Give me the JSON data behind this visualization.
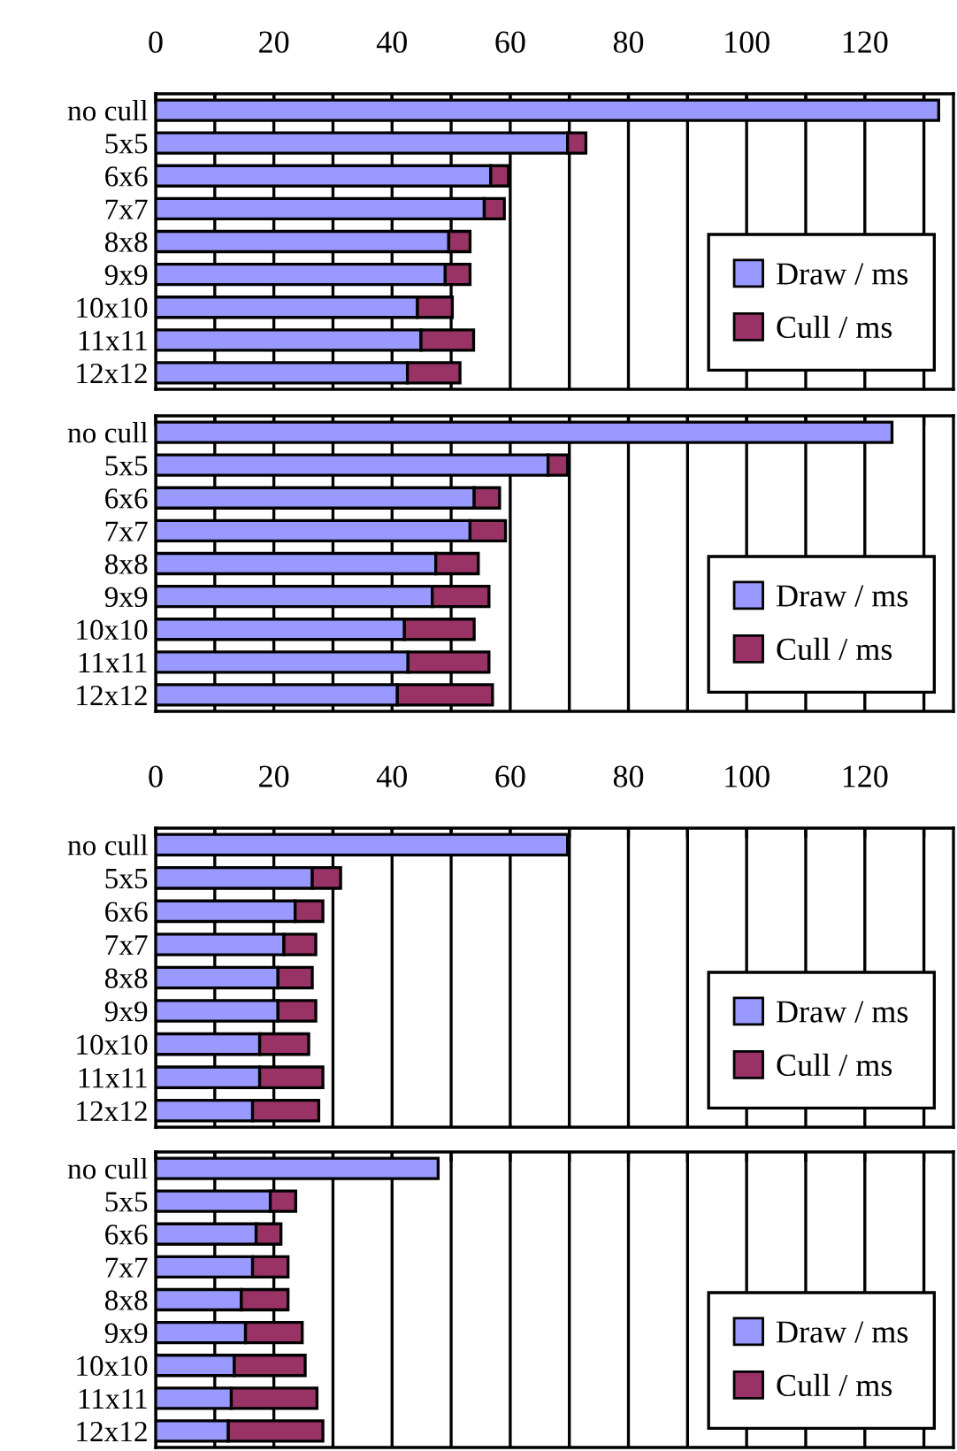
{
  "chart_data": [
    {
      "type": "bar",
      "orientation": "horizontal",
      "stacked": true,
      "categories": [
        "no cull",
        "5x5",
        "6x6",
        "7x7",
        "8x8",
        "9x9",
        "10x10",
        "11x11",
        "12x12"
      ],
      "series": [
        {
          "name": "Draw / ms",
          "color": "#9999ff",
          "values": [
            132.5,
            69.7,
            56.7,
            55.6,
            49.6,
            49.0,
            44.3,
            44.9,
            42.6
          ]
        },
        {
          "name": "Cull / ms",
          "color": "#993366",
          "values": [
            null,
            3.1,
            3.0,
            3.4,
            3.6,
            4.2,
            5.9,
            8.9,
            8.9
          ]
        }
      ],
      "xlim": [
        0,
        135
      ],
      "xticks": [
        0,
        {
          "value": 10,
          "label": null
        },
        20,
        {
          "value": 30,
          "label": null
        },
        40,
        {
          "value": 50,
          "label": null
        },
        60,
        {
          "value": 70,
          "label": null
        },
        80,
        {
          "value": 90,
          "label": null
        },
        100,
        {
          "value": 110,
          "label": null
        },
        120,
        {
          "value": 130,
          "label": null
        }
      ],
      "grid": "x",
      "legend": "bottom right"
    },
    {
      "type": "bar",
      "orientation": "horizontal",
      "stacked": true,
      "categories": [
        "no cull",
        "5x5",
        "6x6",
        "7x7",
        "8x8",
        "9x9",
        "10x10",
        "11x11",
        "12x12"
      ],
      "series": [
        {
          "name": "Draw / ms",
          "color": "#9999ff",
          "values": [
            124.6,
            66.4,
            53.9,
            53.2,
            47.4,
            46.8,
            42.1,
            42.7,
            40.9
          ]
        },
        {
          "name": "Cull / ms",
          "color": "#993366",
          "values": [
            null,
            3.3,
            4.3,
            6.0,
            7.2,
            9.6,
            11.8,
            13.7,
            16.1
          ]
        }
      ],
      "xlim": [
        0,
        135
      ],
      "xticks": [
        0,
        {
          "value": 10,
          "label": null
        },
        20,
        {
          "value": 30,
          "label": null
        },
        40,
        {
          "value": 50,
          "label": null
        },
        60,
        {
          "value": 70,
          "label": null
        },
        80,
        {
          "value": 90,
          "label": null
        },
        100,
        {
          "value": 110,
          "label": null
        },
        120,
        {
          "value": 130,
          "label": null
        }
      ],
      "grid": "x",
      "legend": "bottom right",
      "tick_labels": "y"
    },
    {
      "type": "bar",
      "orientation": "horizontal",
      "stacked": true,
      "categories": [
        "no cull",
        "5x5",
        "6x6",
        "7x7",
        "8x8",
        "9x9",
        "10x10",
        "11x11",
        "12x12"
      ],
      "series": [
        {
          "name": "Draw / ms",
          "color": "#9999ff",
          "values": [
            69.7,
            26.5,
            23.6,
            21.7,
            20.7,
            20.7,
            17.6,
            17.6,
            16.4
          ]
        },
        {
          "name": "Cull / ms",
          "color": "#993366",
          "values": [
            null,
            4.8,
            4.7,
            5.4,
            5.8,
            6.4,
            8.3,
            10.7,
            11.2
          ]
        }
      ],
      "xlim": [
        0,
        135
      ],
      "xticks": [
        0,
        {
          "value": 10,
          "label": null
        },
        20,
        {
          "value": 30,
          "label": null
        },
        40,
        {
          "value": 50,
          "label": null
        },
        60,
        {
          "value": 70,
          "label": null
        },
        80,
        {
          "value": 90,
          "label": null
        },
        100,
        {
          "value": 110,
          "label": null
        },
        120,
        {
          "value": 130,
          "label": null
        }
      ],
      "grid": "x",
      "legend": "bottom right"
    },
    {
      "type": "bar",
      "orientation": "horizontal",
      "stacked": true,
      "categories": [
        "no cull",
        "5x5",
        "6x6",
        "7x7",
        "8x8",
        "9x9",
        "10x10",
        "11x11",
        "12x12"
      ],
      "series": [
        {
          "name": "Draw / ms",
          "color": "#9999ff",
          "values": [
            47.8,
            19.4,
            17.0,
            16.4,
            14.5,
            15.2,
            13.3,
            12.8,
            12.3
          ]
        },
        {
          "name": "Cull / ms",
          "color": "#993366",
          "values": [
            null,
            4.3,
            4.2,
            6.0,
            7.9,
            9.6,
            12.0,
            14.5,
            16.0
          ]
        }
      ],
      "xlim": [
        0,
        135
      ],
      "xticks": [
        0,
        {
          "value": 10,
          "label": null
        },
        20,
        {
          "value": 30,
          "label": null
        },
        40,
        {
          "value": 50,
          "label": null
        },
        60,
        {
          "value": 70,
          "label": null
        },
        80,
        {
          "value": 90,
          "label": null
        },
        100,
        {
          "value": 110,
          "label": null
        },
        120,
        {
          "value": 130,
          "label": null
        }
      ],
      "grid": "x",
      "legend": "bottom right",
      "tick_labels": "y"
    }
  ]
}
